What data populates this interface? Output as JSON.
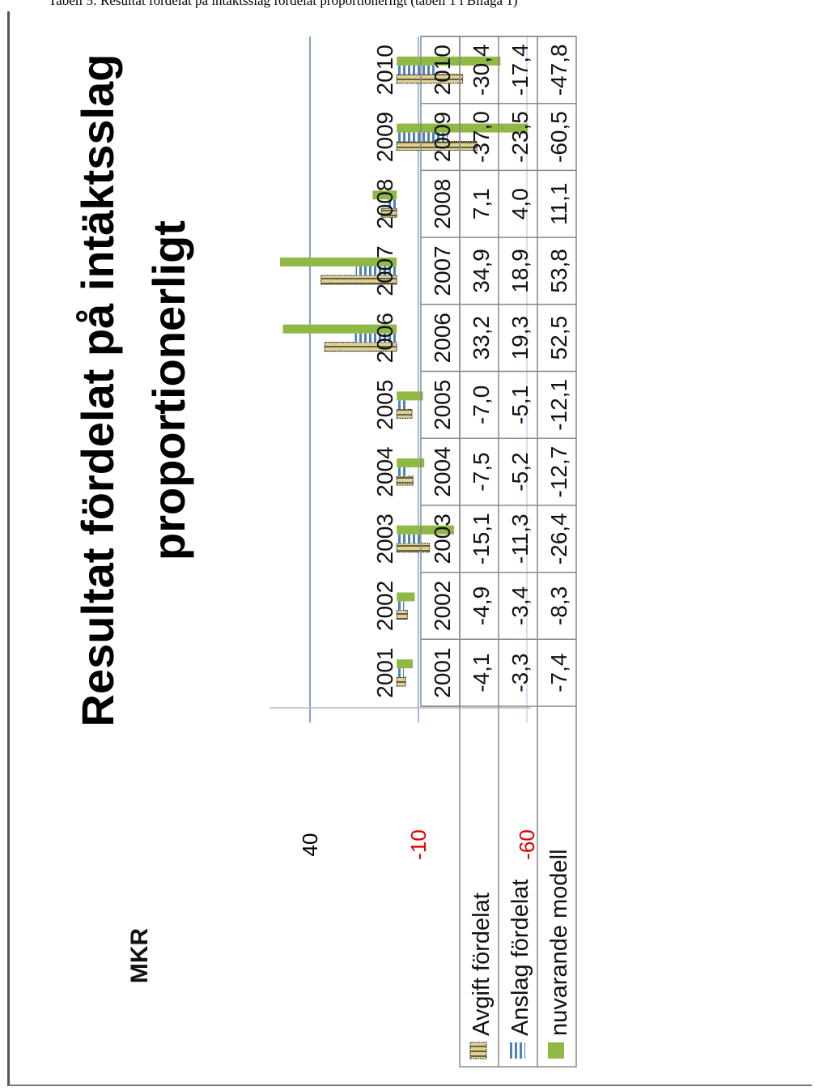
{
  "header_text": "Tabell 5: Resultat fördelat på intäktsslag fördelat proportionerligt (tabell 1 i Bilaga 1)",
  "chart_data": {
    "type": "bar",
    "title": "Resultat fördelat på intäktsslag proportionerligt",
    "ylabel": "MKR",
    "yticks": [
      40,
      -10,
      -60
    ],
    "ytick_colors": [
      "#000000",
      "#e00000",
      "#e00000"
    ],
    "ylim": [
      -60,
      40
    ],
    "grid": true,
    "orientation": "rotated-90-clockwise",
    "legend": "table-below",
    "categories": [
      "2001",
      "2002",
      "2003",
      "2004",
      "2005",
      "2006",
      "2007",
      "2008",
      "2009",
      "2010"
    ],
    "series": [
      {
        "name": "Avgift fördelat",
        "display": [
          "-4,1",
          "-4,9",
          "-15,1",
          "-7,5",
          "-7,0",
          "33,2",
          "34,9",
          "7,1",
          "-37,0",
          "-30,4"
        ],
        "values": [
          -4.1,
          -4.9,
          -15.1,
          -7.5,
          -7.0,
          33.2,
          34.9,
          7.1,
          -37.0,
          -30.4
        ],
        "color": "#c8b870",
        "pattern": "dotted-box"
      },
      {
        "name": "Anslag fördelat",
        "display": [
          "-3,3",
          "-3,4",
          "-11,3",
          "-5,2",
          "-5,1",
          "19,3",
          "18,9",
          "4,0",
          "-23,5",
          "-17,4"
        ],
        "values": [
          -3.3,
          -3.4,
          -11.3,
          -5.2,
          -5.1,
          19.3,
          18.9,
          4.0,
          -23.5,
          -17.4
        ],
        "color": "#4f81bd",
        "pattern": "stripes"
      },
      {
        "name": "nuvarande modell",
        "display": [
          "-7,4",
          "-8,3",
          "-26,4",
          "-12,7",
          "-12,1",
          "52,5",
          "53,8",
          "11,1",
          "-60,5",
          "-47,8"
        ],
        "values": [
          -7.4,
          -8.3,
          -26.4,
          -12.7,
          -12.1,
          52.5,
          53.8,
          11.1,
          -60.5,
          -47.8
        ],
        "color": "#8fb845",
        "pattern": "solid"
      }
    ]
  }
}
